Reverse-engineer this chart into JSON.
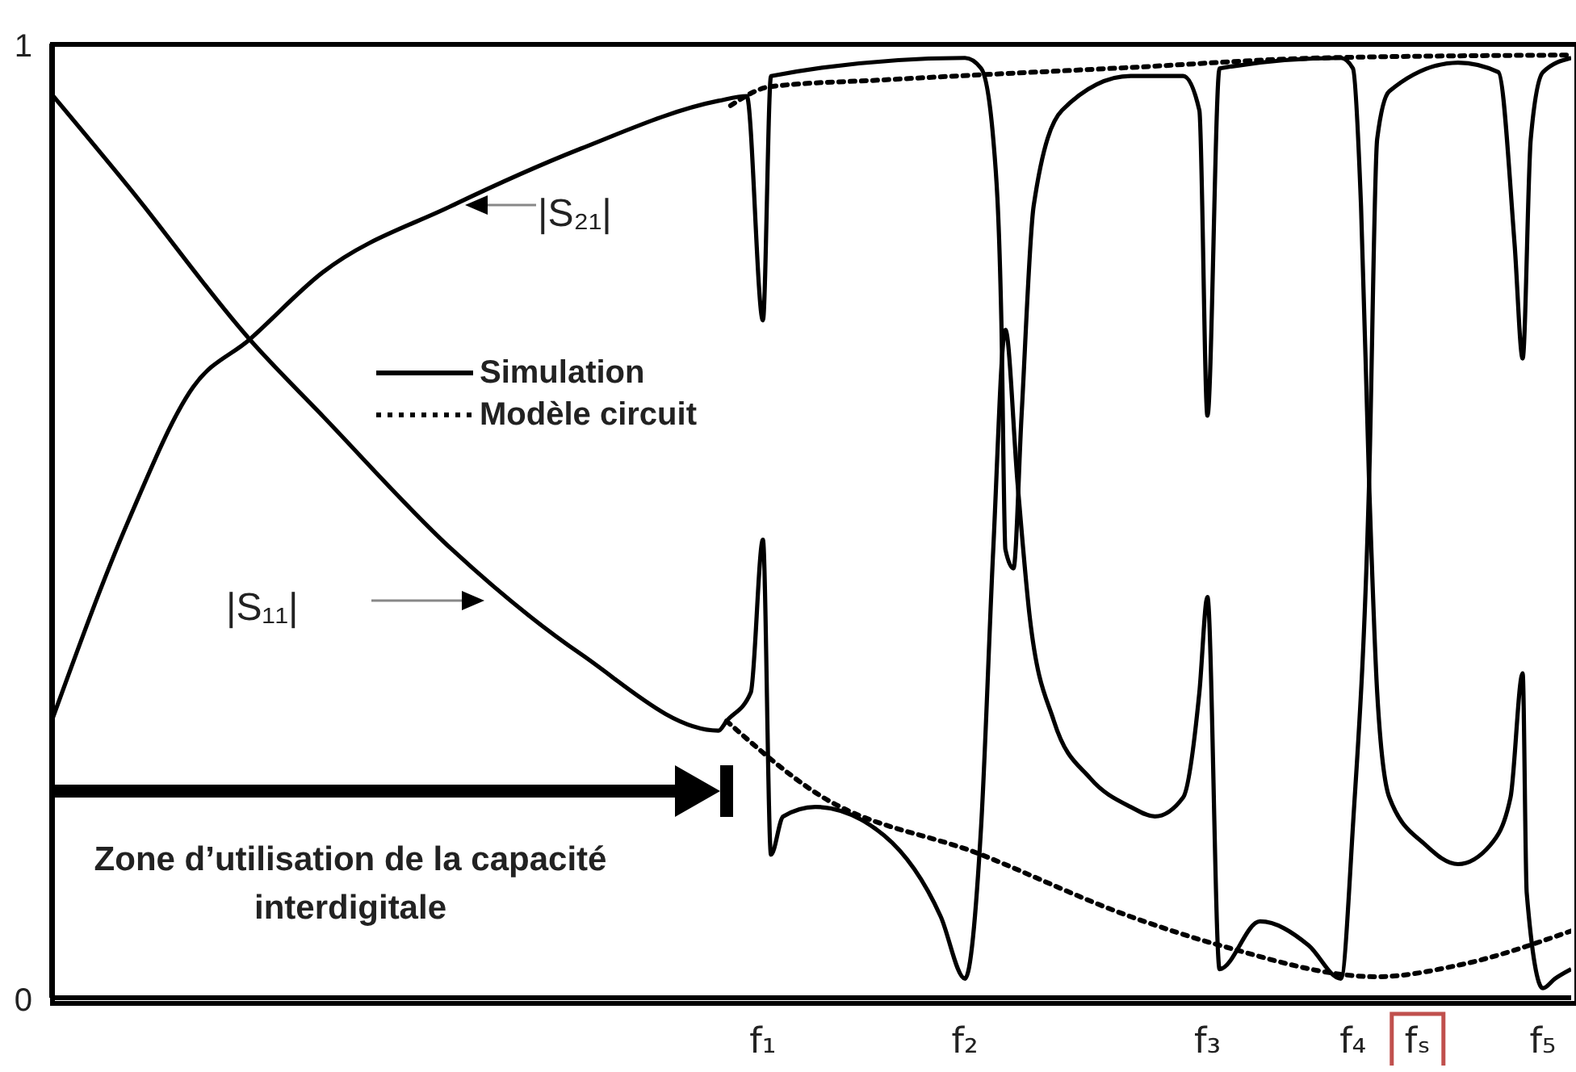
{
  "chart_data": {
    "type": "line",
    "categories": [
      null,
      null,
      null,
      null,
      null,
      null,
      null,
      null,
      null,
      null,
      null,
      null,
      null,
      null,
      null,
      null,
      null,
      null,
      null,
      null,
      null,
      null,
      null,
      null,
      null,
      null,
      null,
      null,
      null,
      null,
      null,
      null,
      null,
      null,
      null,
      null,
      null,
      null,
      null,
      null,
      null,
      null,
      null,
      null,
      null,
      null,
      null,
      null,
      null,
      null,
      null,
      null,
      null,
      null,
      null,
      null,
      null,
      null,
      null,
      null,
      null,
      null,
      null,
      null,
      null,
      null,
      null,
      null,
      null,
      null,
      null,
      null,
      null,
      null,
      null,
      null,
      null,
      null,
      null,
      null,
      null,
      null,
      null,
      null,
      null,
      null,
      null,
      null,
      null,
      null,
      null,
      null,
      null,
      null,
      null,
      null,
      null,
      null,
      null,
      null,
      null,
      null,
      null,
      null,
      null,
      null,
      null,
      null,
      null,
      null,
      null,
      null,
      null,
      null,
      null,
      null,
      null,
      null,
      null,
      null,
      null,
      null,
      null,
      null,
      null,
      null,
      null,
      null,
      null,
      null,
      null,
      null,
      null,
      null,
      null,
      null,
      null,
      null,
      null,
      null,
      null,
      null,
      null,
      null,
      null,
      null,
      null,
      null,
      null,
      null,
      null,
      null,
      null,
      null,
      null,
      null,
      null,
      null,
      null,
      null,
      null,
      null,
      null,
      null,
      null,
      null,
      null,
      null,
      null,
      null,
      null,
      null,
      null,
      null,
      null,
      null,
      "f₁",
      null,
      null,
      null,
      null,
      null,
      null,
      null,
      null,
      null,
      null,
      null,
      null,
      null,
      null,
      null,
      null,
      null,
      null,
      null,
      null,
      null,
      null,
      null,
      null,
      null,
      null,
      null,
      null,
      null,
      null,
      null,
      null,
      null,
      null,
      null,
      null,
      null,
      null,
      null,
      null,
      null,
      null,
      null,
      null,
      null,
      null,
      null,
      null,
      null,
      "f₂",
      null,
      null,
      null,
      null,
      null,
      null,
      null,
      null,
      null,
      null,
      null,
      null,
      null,
      null,
      null,
      null,
      null,
      null,
      null,
      null,
      null,
      null,
      null,
      null,
      null,
      null,
      null,
      null,
      null,
      null,
      null,
      null,
      null,
      null,
      null,
      null,
      null,
      null,
      null,
      null,
      null,
      null,
      null,
      null,
      null,
      null,
      null,
      null,
      null,
      null,
      null,
      null,
      null,
      null,
      null,
      null,
      null,
      null,
      null,
      "f₃",
      null,
      null,
      null,
      null,
      null,
      null,
      null,
      null,
      null,
      null,
      null,
      null,
      null,
      null,
      null,
      null,
      null,
      null,
      null,
      null,
      null,
      null,
      null,
      null,
      null,
      null,
      null,
      null,
      null,
      null,
      null,
      null,
      null,
      null,
      null,
      "f₄",
      null,
      null,
      null,
      null,
      null,
      null,
      null,
      null,
      null,
      null,
      null,
      null,
      null,
      null,
      null,
      "fₛ",
      null,
      null,
      null,
      null,
      null,
      null,
      null,
      null,
      null,
      null,
      null,
      null,
      null,
      null,
      null,
      null,
      null,
      null,
      null,
      null,
      null,
      null,
      null,
      null,
      null,
      null,
      null,
      null,
      null,
      null,
      "f₅",
      null,
      null,
      null,
      null,
      null,
      null,
      null
    ],
    "series": [
      {
        "name": "Simulation",
        "color": "#000000",
        "line_style": "solid",
        "values": [
          0.29,
          null,
          null,
          null,
          null,
          null,
          null,
          null,
          null,
          null,
          null,
          null,
          null,
          null,
          null,
          null,
          null,
          null,
          null,
          0.5,
          null,
          null,
          null,
          null,
          null,
          null,
          null,
          null,
          null,
          null,
          null,
          null,
          null,
          null,
          null,
          0.64,
          null,
          null,
          null,
          null,
          null,
          null,
          null,
          null,
          null,
          null,
          null,
          null,
          null,
          0.69,
          null,
          null,
          null,
          null,
          null,
          null,
          null,
          null,
          null,
          null,
          null,
          null,
          null,
          null,
          null,
          null,
          null,
          0.76,
          null,
          null,
          null,
          null,
          null,
          null,
          null,
          null,
          null,
          null,
          null,
          null,
          null,
          null,
          null,
          null,
          null,
          null,
          null,
          null,
          null,
          null,
          null,
          null,
          null,
          null,
          null,
          null,
          null,
          null,
          null,
          0.83,
          null,
          null,
          null,
          null,
          null,
          null,
          null,
          null,
          null,
          null,
          null,
          null,
          null,
          null,
          null,
          null,
          null,
          null,
          null,
          null,
          null,
          null,
          null,
          null,
          null,
          null,
          null,
          null,
          null,
          null,
          null,
          0.89,
          null,
          null,
          null,
          null,
          null,
          null,
          null,
          null,
          null,
          null,
          null,
          null,
          null,
          null,
          null,
          null,
          null,
          null,
          null,
          null,
          null,
          null,
          null,
          null,
          null,
          null,
          null,
          null,
          null,
          null,
          null,
          null,
          null,
          0.94,
          null,
          null,
          null,
          null,
          null,
          null,
          0.945,
          null,
          null,
          null,
          0.71,
          null,
          0.966,
          null,
          null,
          null,
          null,
          null,
          null,
          null,
          null,
          null,
          null,
          null,
          null,
          null,
          null,
          null,
          null,
          null,
          null,
          null,
          null,
          null,
          null,
          null,
          null,
          null,
          null,
          null,
          null,
          null,
          null,
          null,
          null,
          null,
          null,
          null,
          null,
          null,
          null,
          null,
          null,
          null,
          null,
          null,
          null,
          null,
          null,
          null,
          0.985,
          null,
          null,
          null,
          0.974,
          null,
          null,
          0.9,
          null,
          0.71,
          0.47,
          null,
          0.45,
          null,
          0.61,
          null,
          null,
          0.83,
          null,
          null,
          null,
          null,
          null,
          null,
          0.93,
          null,
          null,
          null,
          null,
          null,
          null,
          null,
          null,
          null,
          null,
          null,
          null,
          null,
          null,
          null,
          null,
          0.966,
          null,
          null,
          null,
          null,
          null,
          null,
          null,
          null,
          null,
          null,
          null,
          null,
          0.966,
          null,
          null,
          null,
          0.93,
          null,
          0.61,
          null,
          null,
          0.974,
          null,
          null,
          null,
          null,
          null,
          null,
          null,
          null,
          null,
          null,
          null,
          null,
          null,
          null,
          null,
          null,
          null,
          null,
          null,
          null,
          null,
          null,
          null,
          null,
          null,
          null,
          null,
          null,
          null,
          0.985,
          null,
          null,
          0.974,
          null,
          0.83,
          null,
          0.54,
          null,
          0.32,
          null,
          null,
          0.21,
          null,
          null,
          null,
          null,
          null,
          null,
          null,
          null,
          0.16,
          null,
          null,
          null,
          null,
          null,
          null,
          null,
          0.14,
          null,
          null,
          null,
          null,
          null,
          null,
          null,
          0.16,
          null,
          null,
          null,
          null,
          0.21,
          null,
          null,
          0.34,
          0.11,
          null,
          null,
          null,
          0.01,
          null,
          null,
          0.02,
          null,
          null,
          null,
          0.03
        ]
      },
      {
        "color": "#000000",
        "line_style": "solid",
        "values": [
          0.947,
          null,
          null,
          null,
          null,
          null,
          null,
          null,
          null,
          null,
          null,
          null,
          null,
          null,
          null,
          null,
          null,
          null,
          null,
          0.85,
          null,
          null,
          null,
          null,
          null,
          null,
          null,
          null,
          null,
          null,
          null,
          null,
          null,
          null,
          null,
          null,
          null,
          null,
          null,
          null,
          null,
          null,
          null,
          null,
          null,
          null,
          null,
          null,
          null,
          0.69,
          null,
          null,
          null,
          null,
          null,
          null,
          null,
          null,
          null,
          null,
          null,
          null,
          null,
          null,
          null,
          null,
          null,
          0.61,
          null,
          null,
          null,
          null,
          null,
          null,
          null,
          null,
          null,
          null,
          null,
          null,
          null,
          null,
          null,
          null,
          null,
          null,
          null,
          null,
          null,
          null,
          null,
          null,
          null,
          null,
          null,
          null,
          null,
          null,
          null,
          0.47,
          null,
          null,
          null,
          null,
          null,
          null,
          null,
          null,
          null,
          null,
          null,
          null,
          null,
          null,
          null,
          null,
          null,
          null,
          null,
          null,
          null,
          null,
          null,
          null,
          null,
          null,
          null,
          null,
          null,
          null,
          null,
          0.36,
          null,
          null,
          null,
          null,
          null,
          null,
          null,
          null,
          null,
          null,
          null,
          null,
          null,
          null,
          null,
          null,
          null,
          null,
          null,
          null,
          null,
          null,
          null,
          null,
          null,
          null,
          null,
          null,
          null,
          null,
          null,
          null,
          null,
          0.28,
          null,
          0.29,
          null,
          null,
          null,
          null,
          null,
          0.32,
          null,
          null,
          0.48,
          null,
          0.15,
          null,
          null,
          0.19,
          null,
          null,
          null,
          null,
          null,
          null,
          null,
          0.2,
          null,
          null,
          null,
          null,
          null,
          null,
          null,
          null,
          null,
          null,
          null,
          null,
          null,
          null,
          null,
          null,
          0.17,
          null,
          null,
          null,
          null,
          null,
          null,
          null,
          null,
          null,
          null,
          null,
          null,
          null,
          0.085,
          null,
          null,
          null,
          null,
          null,
          0.02,
          null,
          null,
          null,
          0.18,
          null,
          null,
          0.47,
          null,
          null,
          0.7,
          null,
          null,
          0.54,
          null,
          null,
          0.4,
          null,
          null,
          null,
          null,
          null,
          0.29,
          null,
          null,
          null,
          null,
          null,
          null,
          null,
          null,
          0.23,
          null,
          null,
          null,
          null,
          null,
          null,
          null,
          null,
          null,
          0.2,
          null,
          null,
          null,
          null,
          null,
          0.19,
          null,
          null,
          null,
          null,
          null,
          null,
          0.21,
          null,
          null,
          null,
          0.32,
          null,
          0.42,
          null,
          null,
          0.03,
          null,
          null,
          null,
          null,
          null,
          null,
          null,
          null,
          null,
          0.08,
          null,
          null,
          null,
          null,
          null,
          null,
          null,
          null,
          null,
          null,
          null,
          0.055,
          null,
          null,
          null,
          null,
          null,
          null,
          null,
          0.02,
          null,
          null,
          0.18,
          null,
          null,
          null,
          0.54,
          null,
          0.9,
          null,
          null,
          0.95,
          null,
          null,
          null,
          null,
          null,
          null,
          null,
          null,
          null,
          null,
          null,
          null,
          null,
          null,
          null,
          null,
          0.98,
          null,
          null,
          null,
          null,
          null,
          null,
          null,
          null,
          null,
          0.97,
          null,
          null,
          null,
          0.79,
          null,
          0.67,
          null,
          0.9,
          null,
          null,
          0.97,
          null,
          null,
          null,
          null,
          null,
          null,
          0.985
        ]
      },
      {
        "name": "Modèle circuit",
        "color": "#000000",
        "line_style": "dotted",
        "values": [
          null,
          null,
          null,
          null,
          null,
          null,
          null,
          null,
          null,
          null,
          null,
          null,
          null,
          null,
          null,
          null,
          null,
          null,
          null,
          null,
          null,
          null,
          null,
          null,
          null,
          null,
          null,
          null,
          null,
          null,
          null,
          null,
          null,
          null,
          null,
          null,
          null,
          null,
          null,
          null,
          null,
          null,
          null,
          null,
          null,
          null,
          null,
          null,
          null,
          null,
          null,
          null,
          null,
          null,
          null,
          null,
          null,
          null,
          null,
          null,
          null,
          null,
          null,
          null,
          null,
          null,
          null,
          null,
          null,
          null,
          null,
          null,
          null,
          null,
          null,
          null,
          null,
          null,
          null,
          null,
          null,
          null,
          null,
          null,
          null,
          null,
          null,
          null,
          null,
          null,
          null,
          null,
          null,
          null,
          null,
          null,
          null,
          null,
          null,
          null,
          null,
          null,
          null,
          null,
          null,
          null,
          null,
          null,
          null,
          null,
          null,
          null,
          null,
          null,
          null,
          null,
          null,
          null,
          null,
          null,
          null,
          null,
          null,
          null,
          null,
          null,
          null,
          null,
          null,
          null,
          null,
          null,
          null,
          null,
          null,
          null,
          null,
          null,
          null,
          null,
          null,
          null,
          null,
          null,
          null,
          null,
          null,
          null,
          null,
          null,
          null,
          null,
          null,
          null,
          null,
          null,
          null,
          null,
          null,
          null,
          null,
          null,
          null,
          null,
          null,
          null,
          null,
          null,
          0.935,
          null,
          null,
          null,
          null,
          null,
          null,
          null,
          null,
          null,
          0.955,
          null,
          null,
          null,
          null,
          null,
          null,
          null,
          null,
          null,
          null,
          null,
          null,
          null,
          null,
          null,
          null,
          null,
          null,
          null,
          null,
          null,
          null,
          null,
          null,
          null,
          null,
          null,
          0.962,
          null,
          null,
          null,
          null,
          null,
          null,
          null,
          null,
          null,
          null,
          null,
          null,
          null,
          null,
          null,
          null,
          null,
          null,
          null,
          null,
          null,
          null,
          null,
          null,
          null,
          null,
          null,
          null,
          null,
          null,
          null,
          null,
          null,
          null,
          null,
          null,
          null,
          null,
          null,
          null,
          null,
          null,
          null,
          null,
          null,
          null,
          null,
          null,
          null,
          null,
          null,
          null,
          null,
          null,
          null,
          null,
          null,
          null,
          null,
          null,
          0.975,
          null,
          null,
          null,
          null,
          null,
          null,
          null,
          null,
          null,
          null,
          null,
          null,
          null,
          null,
          null,
          null,
          null,
          null,
          null,
          null,
          null,
          null,
          null,
          null,
          null,
          null,
          null,
          null,
          null,
          null,
          null,
          null,
          null,
          null,
          null,
          null,
          null,
          null,
          null,
          null,
          null,
          null,
          null,
          null,
          null,
          null,
          0.985,
          null,
          null,
          null,
          null,
          null,
          null,
          null,
          null,
          null,
          null,
          null,
          null,
          null,
          null,
          null,
          null,
          null,
          null,
          null,
          null,
          null,
          null,
          null,
          null,
          null,
          null,
          null,
          null,
          null,
          null,
          null,
          null,
          null,
          null,
          null,
          null,
          null,
          null,
          null,
          null,
          null,
          null,
          null,
          null,
          null,
          null,
          null,
          null,
          null,
          null,
          null,
          null,
          null,
          null,
          null,
          null,
          null,
          null,
          null,
          null,
          null,
          0.988
        ]
      },
      {
        "color": "#000000",
        "line_style": "dotted",
        "values": [
          null,
          null,
          null,
          null,
          null,
          null,
          null,
          null,
          null,
          null,
          null,
          null,
          null,
          null,
          null,
          null,
          null,
          null,
          null,
          null,
          null,
          null,
          null,
          null,
          null,
          null,
          null,
          null,
          null,
          null,
          null,
          null,
          null,
          null,
          null,
          null,
          null,
          null,
          null,
          null,
          null,
          null,
          null,
          null,
          null,
          null,
          null,
          null,
          null,
          null,
          null,
          null,
          null,
          null,
          null,
          null,
          null,
          null,
          null,
          null,
          null,
          null,
          null,
          null,
          null,
          null,
          null,
          null,
          null,
          null,
          null,
          null,
          null,
          null,
          null,
          null,
          null,
          null,
          null,
          null,
          null,
          null,
          null,
          null,
          null,
          null,
          null,
          null,
          null,
          null,
          null,
          null,
          null,
          null,
          null,
          null,
          null,
          null,
          null,
          null,
          null,
          null,
          null,
          null,
          null,
          null,
          null,
          null,
          null,
          null,
          null,
          null,
          null,
          null,
          null,
          null,
          null,
          null,
          null,
          null,
          null,
          null,
          null,
          null,
          null,
          null,
          null,
          null,
          null,
          null,
          null,
          null,
          null,
          null,
          null,
          null,
          null,
          null,
          null,
          null,
          null,
          null,
          null,
          null,
          null,
          null,
          null,
          null,
          null,
          null,
          null,
          null,
          null,
          null,
          null,
          null,
          null,
          null,
          null,
          null,
          null,
          null,
          null,
          null,
          null,
          null,
          null,
          0.29,
          null,
          null,
          null,
          null,
          null,
          null,
          null,
          null,
          null,
          null,
          null,
          null,
          null,
          null,
          null,
          null,
          null,
          null,
          null,
          null,
          null,
          0.215,
          null,
          null,
          null,
          null,
          null,
          null,
          null,
          null,
          null,
          null,
          null,
          null,
          null,
          null,
          null,
          null,
          null,
          null,
          null,
          null,
          null,
          null,
          null,
          null,
          null,
          null,
          null,
          null,
          null,
          null,
          null,
          null,
          null,
          null,
          null,
          null,
          null,
          null,
          null,
          null,
          0.15,
          null,
          null,
          null,
          null,
          null,
          null,
          null,
          null,
          null,
          null,
          null,
          null,
          null,
          null,
          null,
          null,
          null,
          null,
          null,
          null,
          null,
          null,
          null,
          null,
          null,
          null,
          null,
          null,
          null,
          null,
          null,
          null,
          null,
          null,
          null,
          null,
          0.085,
          null,
          null,
          null,
          null,
          null,
          null,
          null,
          null,
          null,
          null,
          null,
          null,
          null,
          null,
          null,
          null,
          null,
          null,
          null,
          null,
          null,
          0.055,
          null,
          null,
          null,
          null,
          null,
          null,
          null,
          null,
          null,
          null,
          null,
          null,
          null,
          null,
          null,
          null,
          null,
          null,
          null,
          null,
          null,
          null,
          null,
          null,
          null,
          null,
          null,
          null,
          null,
          null,
          null,
          null,
          null,
          null,
          null,
          null,
          null,
          null,
          0.022,
          null,
          null,
          null,
          null,
          null,
          null,
          null,
          null,
          null,
          null,
          null,
          null,
          null,
          null,
          null,
          null,
          null,
          null,
          null,
          0.034,
          null,
          null,
          null,
          null,
          null,
          null,
          null,
          null,
          null,
          null,
          null,
          null,
          null,
          null,
          null,
          null,
          null,
          null,
          null,
          null,
          null,
          null,
          null,
          null,
          null,
          null,
          null,
          0.07
        ]
      }
    ],
    "ylim": [
      0,
      1
    ],
    "yticks": [
      0,
      1
    ],
    "legend": "left",
    "annotations": [
      "|S₂₁|",
      "|S₁₁|",
      "Zone d’utilisation de la capacité interdigitale"
    ]
  }
}
